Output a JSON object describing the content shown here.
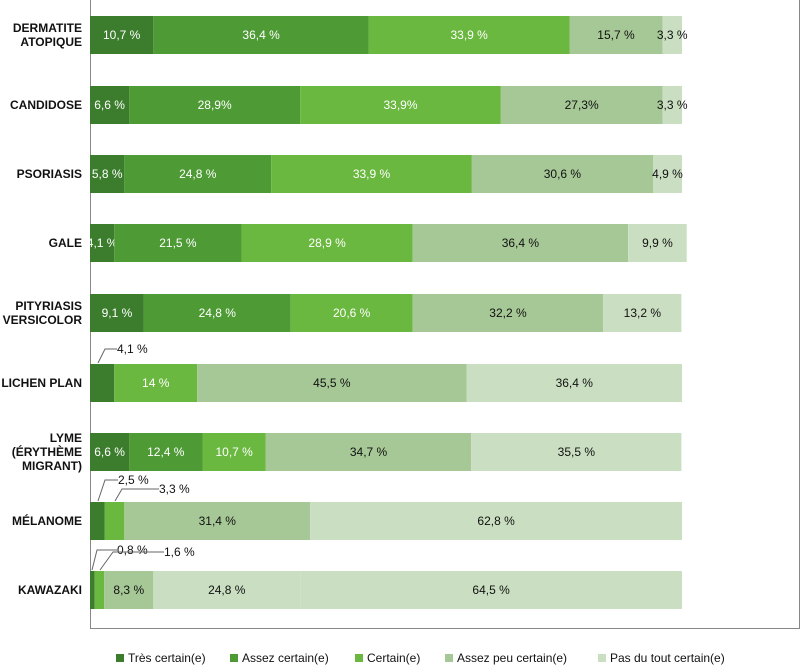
{
  "chart_data": {
    "type": "bar",
    "orientation": "horizontal",
    "stacked": true,
    "grid": false,
    "legend_position": "bottom",
    "ylim": [
      0,
      100
    ],
    "categories": [
      [
        "DERMATITE",
        "ATOPIQUE"
      ],
      [
        "CANDIDOSE"
      ],
      [
        "PSORIASIS"
      ],
      [
        "GALE"
      ],
      [
        "PITYRIASIS",
        "VERSICOLOR"
      ],
      [
        "LICHEN PLAN"
      ],
      [
        "LYME",
        "(ÉRYTHÈME",
        "MIGRANT)"
      ],
      [
        "MÉLANOME"
      ],
      [
        "KAWAZAKI"
      ]
    ],
    "series": [
      {
        "name": "Très certain(e)",
        "color": "#3b7d2c",
        "values": [
          10.7,
          6.6,
          5.8,
          4.1,
          9.1,
          4.1,
          6.6,
          2.5,
          0.8
        ],
        "labels": [
          "10,7 %",
          "6,6 %",
          "5,8 %",
          "4,1 %",
          "9,1 %",
          "4,1 %",
          "6,6 %",
          "2,5 %",
          "0,8 %"
        ]
      },
      {
        "name": "Assez certain(e)",
        "color": "#4e9a35",
        "values": [
          36.4,
          28.9,
          24.8,
          21.5,
          24.8,
          0,
          12.4,
          0,
          0
        ],
        "labels": [
          "36,4 %",
          "28,9%",
          "24,8 %",
          "21,5 %",
          "24,8 %",
          "",
          "12,4 %",
          "",
          ""
        ]
      },
      {
        "name": "Certain(e)",
        "color": "#6ab83f",
        "values": [
          33.9,
          33.9,
          33.9,
          28.9,
          20.6,
          14,
          10.7,
          3.3,
          1.6
        ],
        "labels": [
          "33,9 %",
          "33,9%",
          "33,9 %",
          "28,9 %",
          "20,6 %",
          "14 %",
          "10,7 %",
          "3,3 %",
          "1,6 %"
        ]
      },
      {
        "name": "Assez peu certain(e)",
        "color": "#a6c896",
        "values": [
          15.7,
          27.3,
          30.6,
          36.4,
          32.2,
          45.5,
          34.7,
          31.4,
          8.3
        ],
        "labels": [
          "15,7 %",
          "27,3%",
          "30,6 %",
          "36,4 %",
          "32,2 %",
          "45,5 %",
          "34,7 %",
          "31,4 %",
          "8,3 %"
        ]
      },
      {
        "name": "Pas du tout certain(e)",
        "color": "#cadfc1",
        "values": [
          3.3,
          3.3,
          4.9,
          9.9,
          13.2,
          36.4,
          35.5,
          62.8,
          24.8
        ],
        "labels": [
          "3,3 %",
          "3,3 %",
          "4,9 %",
          "9,9 %",
          "13,2 %",
          "36,4 %",
          "35,5 %",
          "62,8 %",
          "24,8 %"
        ]
      },
      {
        "name": "",
        "color": "#cadfc1",
        "values": [
          0,
          0,
          0,
          0,
          0,
          0,
          0,
          0,
          64.5
        ],
        "labels": [
          "",
          "",
          "",
          "",
          "",
          "",
          "",
          "",
          "64,5 %"
        ]
      }
    ]
  }
}
